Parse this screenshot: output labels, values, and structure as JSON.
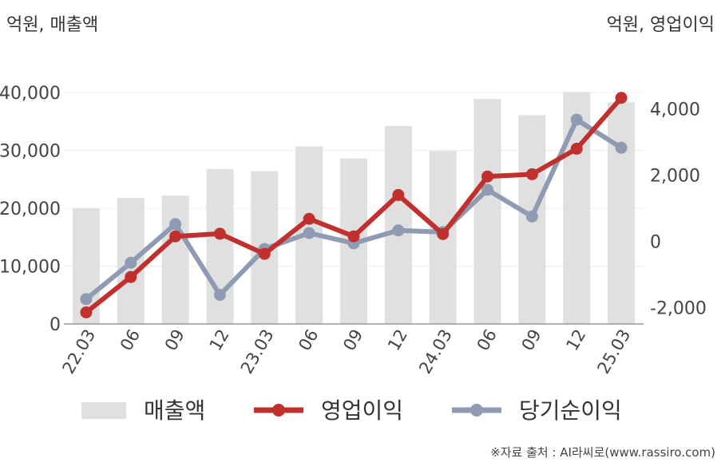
{
  "chart_data": {
    "type": "bar+line",
    "left_unit": "억원, 매출액",
    "right_unit": "억원, 영업이익",
    "categories": [
      "22.03",
      "06",
      "09",
      "12",
      "23.03",
      "06",
      "09",
      "12",
      "24.03",
      "06",
      "09",
      "12",
      "25.03"
    ],
    "left_axis": {
      "ylim": [
        0,
        40000
      ],
      "ticks": [
        "0",
        "10,000",
        "20,000",
        "30,000",
        "40,000"
      ],
      "tick_values": [
        0,
        10000,
        20000,
        30000,
        40000
      ]
    },
    "right_axis": {
      "ylim": [
        -2500,
        4500
      ],
      "ticks": [
        "-2,000",
        "0",
        "2,000",
        "4,000"
      ],
      "tick_values": [
        -2000,
        0,
        2000,
        4000
      ]
    },
    "series": [
      {
        "name": "매출액",
        "type": "bar",
        "axis": "left",
        "color": "#e0e0e0",
        "values": [
          20000,
          21800,
          22200,
          26800,
          26400,
          30700,
          28600,
          34200,
          29900,
          38900,
          36100,
          40100,
          38300
        ]
      },
      {
        "name": "영업이익",
        "type": "line",
        "axis": "right",
        "color": "#c0302e",
        "values": [
          -2150,
          -1080,
          150,
          230,
          -380,
          680,
          150,
          1400,
          220,
          1960,
          2030,
          2800,
          4340
        ]
      },
      {
        "name": "당기순이익",
        "type": "line",
        "axis": "right",
        "color": "#8f9ab3",
        "values": [
          -1750,
          -650,
          520,
          -1620,
          -230,
          250,
          -60,
          330,
          280,
          1560,
          750,
          3680,
          2830
        ]
      }
    ],
    "grid": true,
    "legend_position": "bottom"
  },
  "source_note": "※자료 출처 : AI라씨로(www.rassiro.com)"
}
